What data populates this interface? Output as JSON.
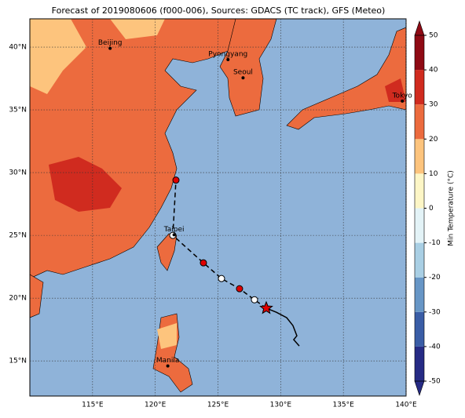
{
  "title": "Forecast of 2019080606 (f000-006), Sources: GDACS (TC track), GFS (Meteo)",
  "map": {
    "xlim": [
      110,
      140
    ],
    "ylim": [
      12.2,
      42.25
    ],
    "xticks": [
      {
        "value": 115,
        "label": "115°E"
      },
      {
        "value": 120,
        "label": "120°E"
      },
      {
        "value": 125,
        "label": "125°E"
      },
      {
        "value": 130,
        "label": "130°E"
      },
      {
        "value": 135,
        "label": "135°E"
      },
      {
        "value": 140,
        "label": "140°E"
      }
    ],
    "yticks": [
      {
        "value": 15,
        "label": "15°N"
      },
      {
        "value": 20,
        "label": "20°N"
      },
      {
        "value": 25,
        "label": "25°N"
      },
      {
        "value": 30,
        "label": "30°N"
      },
      {
        "value": 35,
        "label": "35°N"
      },
      {
        "value": 40,
        "label": "40°N"
      }
    ],
    "cities": [
      {
        "name": "Beijing",
        "lon": 116.4,
        "lat": 39.9
      },
      {
        "name": "Pyongyang",
        "lon": 125.8,
        "lat": 39.0
      },
      {
        "name": "Seoul",
        "lon": 127.0,
        "lat": 37.55
      },
      {
        "name": "Tokyo",
        "lon": 139.7,
        "lat": 35.7
      },
      {
        "name": "Taipei",
        "lon": 121.5,
        "lat": 25.05
      },
      {
        "name": "Manila",
        "lon": 121.0,
        "lat": 14.6
      }
    ],
    "past_track": {
      "lon": [
        128.85,
        129.66,
        130.48,
        130.98,
        131.29,
        131.04,
        131.48
      ],
      "lat": [
        19.2,
        18.87,
        18.44,
        17.81,
        17.0,
        16.69,
        16.19
      ],
      "color": "#000000"
    },
    "forecast_track": {
      "lon": [
        128.85,
        127.91,
        126.72,
        125.28,
        123.84,
        121.4,
        121.65
      ],
      "lat": [
        19.2,
        19.87,
        20.75,
        21.56,
        22.81,
        25.0,
        29.4
      ],
      "color": "#e00000"
    }
  },
  "colorbar": {
    "label": "Min Temperature (°C)",
    "lim": [
      -50,
      50
    ],
    "ticks": [
      -50,
      -40,
      -30,
      -20,
      -10,
      0,
      10,
      20,
      30,
      40,
      50
    ],
    "colors": [
      "#262b85",
      "#3a5da6",
      "#6796c6",
      "#a9cfe4",
      "#e3f3f7",
      "#fdf6c6",
      "#fdc47d",
      "#ec6b3e",
      "#d02b1f",
      "#8f0a14"
    ]
  }
}
